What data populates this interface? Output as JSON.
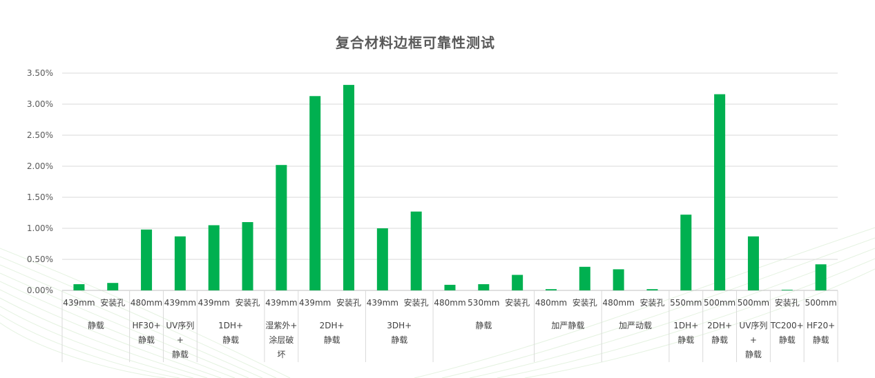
{
  "chart_data": {
    "type": "bar",
    "title": "复合材料边框可靠性测试",
    "xlabel": "",
    "ylabel": "",
    "ylim": [
      0,
      3.5
    ],
    "ytick_format": "percent_2dp",
    "yticks": [
      "0.00%",
      "0.50%",
      "1.00%",
      "1.50%",
      "2.00%",
      "2.50%",
      "3.00%",
      "3.50%"
    ],
    "grid": true,
    "legend": "none",
    "bar_color": "#00b050",
    "categories": [
      "439mm",
      "安装孔",
      "480mm",
      "439mm",
      "439mm",
      "安装孔",
      "439mm",
      "439mm",
      "安装孔",
      "439mm",
      "安装孔",
      "480mm",
      "530mm",
      "安装孔",
      "480mm",
      "安装孔",
      "480mm",
      "安装孔",
      "550mm",
      "500mm",
      "500mm",
      "安装孔",
      "500mm"
    ],
    "values": [
      0.1,
      0.12,
      0.98,
      0.87,
      1.05,
      1.1,
      2.02,
      3.13,
      3.31,
      1.0,
      1.27,
      0.09,
      0.1,
      0.25,
      0.02,
      0.38,
      0.34,
      0.02,
      1.22,
      3.16,
      0.87,
      0.01,
      0.42
    ],
    "groups": [
      {
        "label": [
          "静载"
        ],
        "span": 2
      },
      {
        "label": [
          "HF30+",
          "静载"
        ],
        "span": 1
      },
      {
        "label": [
          "UV序列",
          "+",
          "静载"
        ],
        "span": 1
      },
      {
        "label": [
          "1DH+",
          "静载"
        ],
        "span": 2
      },
      {
        "label": [
          "湿紫外+",
          "涂层破",
          "坏"
        ],
        "span": 1
      },
      {
        "label": [
          "2DH+",
          "静载"
        ],
        "span": 2
      },
      {
        "label": [
          "3DH+",
          "静载"
        ],
        "span": 2
      },
      {
        "label": [
          "静载"
        ],
        "span": 3
      },
      {
        "label": [
          "加严静载"
        ],
        "span": 2
      },
      {
        "label": [
          "加严动载"
        ],
        "span": 2
      },
      {
        "label": [
          "1DH+",
          "静载"
        ],
        "span": 1
      },
      {
        "label": [
          "2DH+",
          "静载"
        ],
        "span": 1
      },
      {
        "label": [
          "UV序列",
          "+",
          "静载"
        ],
        "span": 1
      },
      {
        "label": [
          "TC200+",
          "静载"
        ],
        "span": 1
      },
      {
        "label": [
          "HF20+",
          "静载"
        ],
        "span": 1
      }
    ]
  }
}
